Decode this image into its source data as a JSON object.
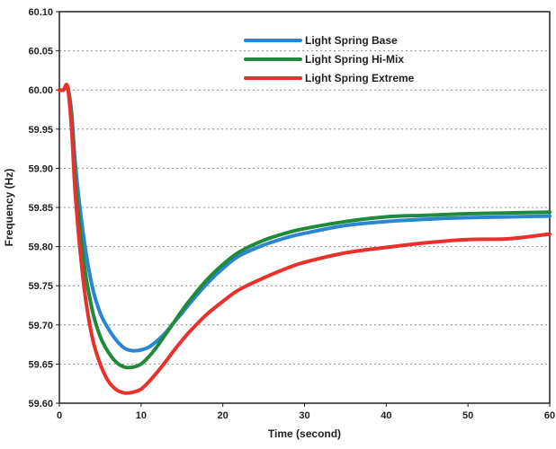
{
  "chart_data": {
    "type": "line",
    "title": "",
    "xlabel": "Time (second)",
    "ylabel": "Frequency (Hz)",
    "xlim": [
      0,
      60
    ],
    "ylim": [
      59.6,
      60.1
    ],
    "grid": "horizontal dashed",
    "legend_placement": "top-center",
    "x_ticks": [
      {
        "v": 0,
        "label": "0"
      },
      {
        "v": 10,
        "label": "10"
      },
      {
        "v": 20,
        "label": "20"
      },
      {
        "v": 30,
        "label": "30"
      },
      {
        "v": 40,
        "label": "40"
      },
      {
        "v": 50,
        "label": "50"
      },
      {
        "v": 60,
        "label": "60"
      }
    ],
    "y_ticks": [
      {
        "v": 59.6,
        "label": "59.60"
      },
      {
        "v": 59.65,
        "label": "59.65"
      },
      {
        "v": 59.7,
        "label": "59.70"
      },
      {
        "v": 59.75,
        "label": "59.75"
      },
      {
        "v": 59.8,
        "label": "59.80"
      },
      {
        "v": 59.85,
        "label": "59.85"
      },
      {
        "v": 59.9,
        "label": "59.90"
      },
      {
        "v": 59.95,
        "label": "59.95"
      },
      {
        "v": 60.0,
        "label": "60.00"
      },
      {
        "v": 60.05,
        "label": "60.05"
      },
      {
        "v": 60.1,
        "label": "60.10"
      }
    ],
    "series": [
      {
        "name": "Light Spring Base",
        "color": "#2a86d0",
        "points": [
          [
            0,
            60.0
          ],
          [
            0.5,
            60.0
          ],
          [
            1,
            60.004
          ],
          [
            1.5,
            59.97
          ],
          [
            2,
            59.9
          ],
          [
            3,
            59.81
          ],
          [
            4,
            59.75
          ],
          [
            5,
            59.715
          ],
          [
            6,
            59.695
          ],
          [
            7,
            59.68
          ],
          [
            8,
            59.67
          ],
          [
            9,
            59.667
          ],
          [
            10,
            59.668
          ],
          [
            11,
            59.672
          ],
          [
            12,
            59.68
          ],
          [
            13,
            59.69
          ],
          [
            14,
            59.703
          ],
          [
            15,
            59.715
          ],
          [
            16,
            59.728
          ],
          [
            18,
            59.752
          ],
          [
            20,
            59.772
          ],
          [
            22,
            59.788
          ],
          [
            25,
            59.802
          ],
          [
            28,
            59.812
          ],
          [
            30,
            59.817
          ],
          [
            35,
            59.827
          ],
          [
            40,
            59.832
          ],
          [
            45,
            59.835
          ],
          [
            50,
            59.837
          ],
          [
            55,
            59.838
          ],
          [
            60,
            59.839
          ]
        ]
      },
      {
        "name": "Light Spring Hi-Mix",
        "color": "#1f8a3c",
        "points": [
          [
            0,
            60.0
          ],
          [
            0.5,
            60.0
          ],
          [
            1,
            60.004
          ],
          [
            1.5,
            59.965
          ],
          [
            2,
            59.88
          ],
          [
            3,
            59.78
          ],
          [
            4,
            59.72
          ],
          [
            5,
            59.685
          ],
          [
            6,
            59.665
          ],
          [
            7,
            59.652
          ],
          [
            8,
            59.646
          ],
          [
            9,
            59.646
          ],
          [
            10,
            59.65
          ],
          [
            11,
            59.66
          ],
          [
            12,
            59.673
          ],
          [
            13,
            59.688
          ],
          [
            14,
            59.703
          ],
          [
            15,
            59.718
          ],
          [
            16,
            59.732
          ],
          [
            18,
            59.757
          ],
          [
            20,
            59.777
          ],
          [
            22,
            59.793
          ],
          [
            25,
            59.808
          ],
          [
            28,
            59.818
          ],
          [
            30,
            59.823
          ],
          [
            35,
            59.832
          ],
          [
            40,
            59.838
          ],
          [
            45,
            59.84
          ],
          [
            50,
            59.842
          ],
          [
            55,
            59.843
          ],
          [
            60,
            59.844
          ]
        ]
      },
      {
        "name": "Light Spring Extreme",
        "color": "#e8312a",
        "points": [
          [
            0,
            60.0
          ],
          [
            0.5,
            60.0
          ],
          [
            1,
            60.004
          ],
          [
            1.5,
            59.95
          ],
          [
            2,
            59.86
          ],
          [
            3,
            59.75
          ],
          [
            4,
            59.685
          ],
          [
            5,
            59.65
          ],
          [
            6,
            59.628
          ],
          [
            7,
            59.617
          ],
          [
            8,
            59.613
          ],
          [
            9,
            59.614
          ],
          [
            10,
            59.618
          ],
          [
            11,
            59.628
          ],
          [
            12,
            59.64
          ],
          [
            13,
            59.653
          ],
          [
            14,
            59.667
          ],
          [
            15,
            59.68
          ],
          [
            16,
            59.692
          ],
          [
            18,
            59.713
          ],
          [
            20,
            59.73
          ],
          [
            22,
            59.745
          ],
          [
            25,
            59.76
          ],
          [
            28,
            59.773
          ],
          [
            30,
            59.78
          ],
          [
            35,
            59.792
          ],
          [
            40,
            59.799
          ],
          [
            45,
            59.805
          ],
          [
            50,
            59.809
          ],
          [
            55,
            59.81
          ],
          [
            60,
            59.816
          ]
        ]
      }
    ]
  }
}
